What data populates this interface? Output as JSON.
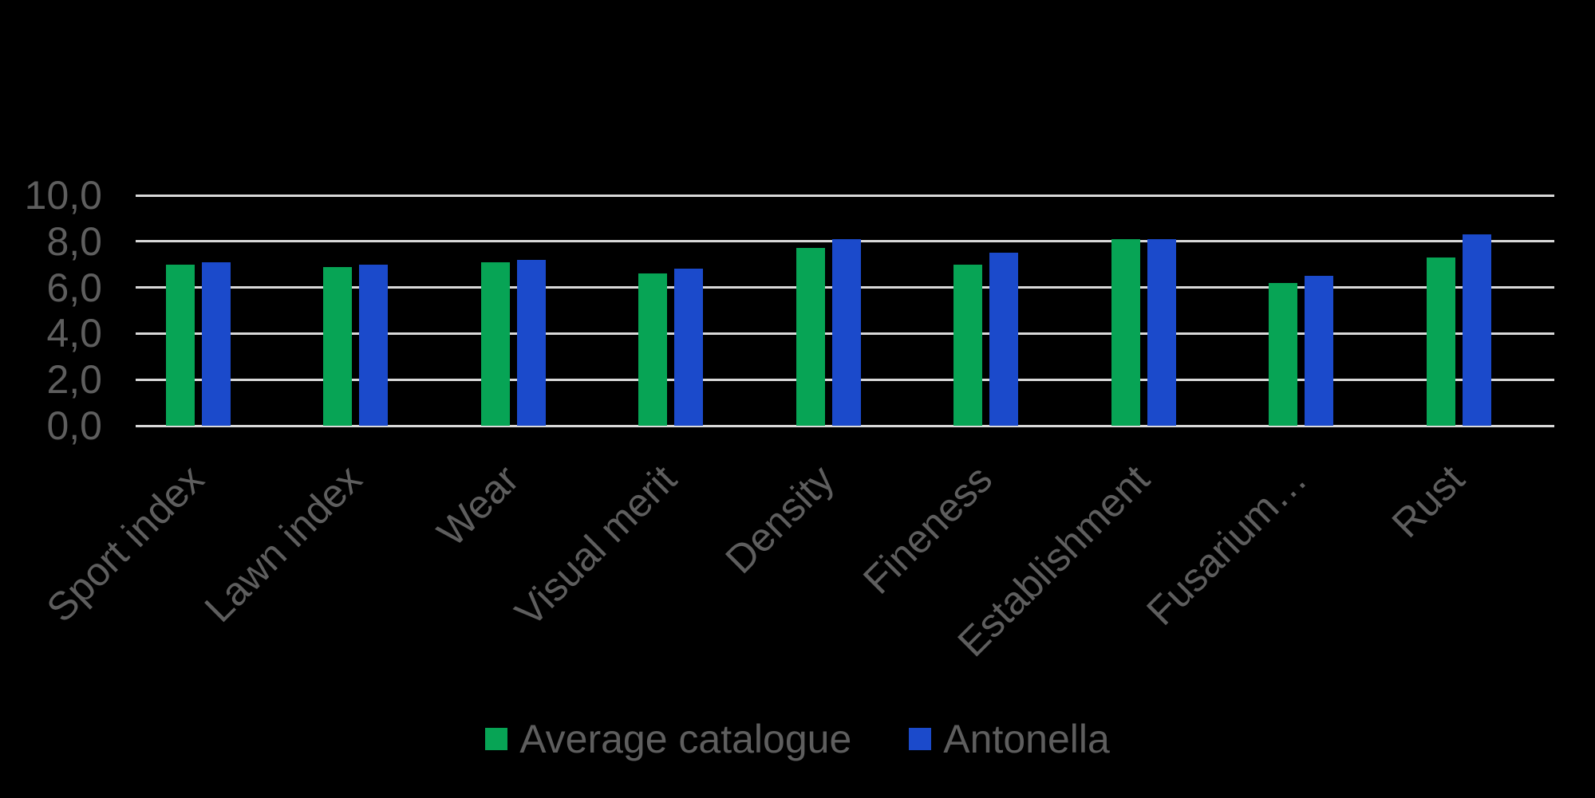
{
  "chart_data": {
    "type": "bar",
    "title": "",
    "categories": [
      "Sport index",
      "Lawn index",
      "Wear",
      "Visual merit",
      "Density",
      "Fineness",
      "Establishment",
      "Fusarium…",
      "Rust"
    ],
    "series": [
      {
        "name": "Average catalogue",
        "color": "#07a455",
        "values": [
          7.0,
          6.9,
          7.1,
          6.6,
          7.7,
          7.0,
          8.1,
          6.2,
          7.3
        ]
      },
      {
        "name": "Antonella",
        "color": "#1b4acb",
        "values": [
          7.1,
          7.0,
          7.2,
          6.8,
          8.1,
          7.5,
          8.1,
          6.5,
          8.3
        ]
      }
    ],
    "ylim": [
      0,
      10
    ],
    "ytick_values": [
      0,
      2,
      4,
      6,
      8,
      10
    ],
    "ytick_labels": [
      "0,0",
      "2,0",
      "4,0",
      "6,0",
      "8,0",
      "10,0"
    ],
    "grid": true,
    "legend_position": "bottom",
    "colors": {
      "background": "#000000",
      "gridline": "#d9d9d9",
      "text": "#5e5e5e"
    }
  }
}
